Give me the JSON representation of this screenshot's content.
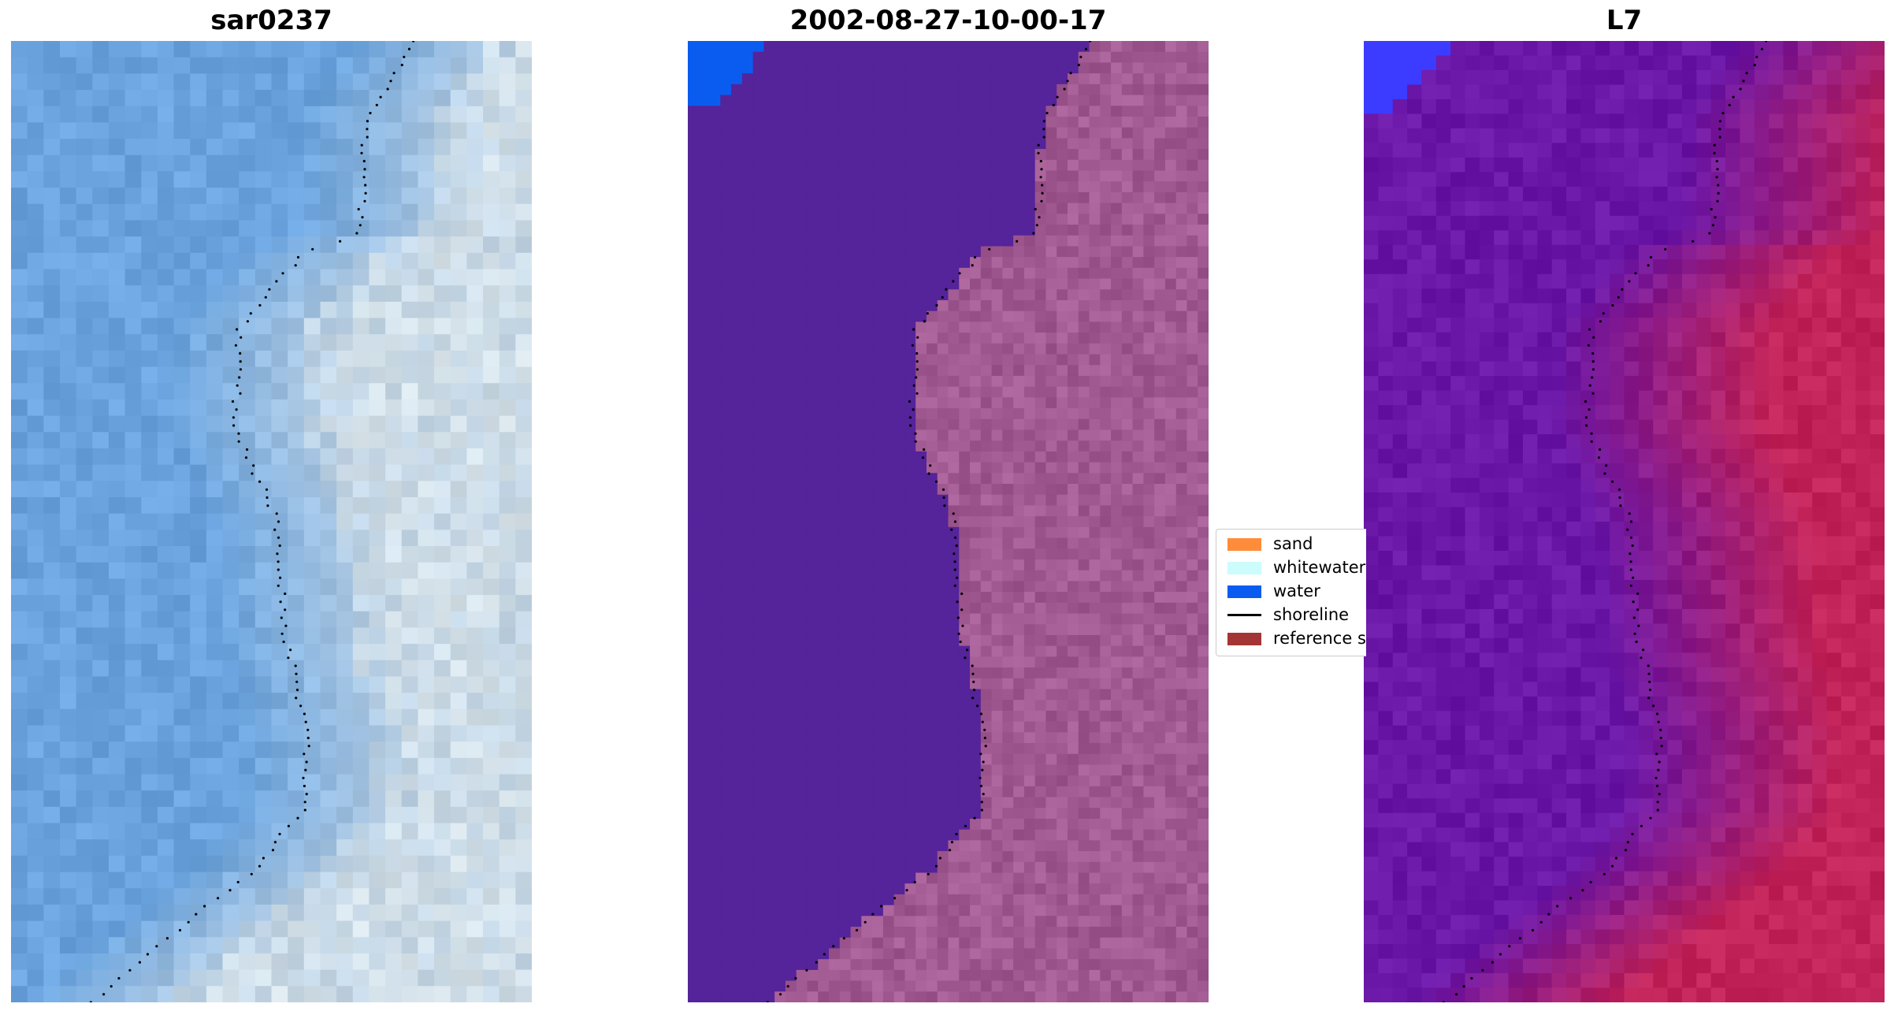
{
  "panels": [
    {
      "title": "sar0237",
      "kind": "rgb"
    },
    {
      "title": "2002-08-27-10-00-17",
      "kind": "classified"
    },
    {
      "title": "L7",
      "kind": "index"
    }
  ],
  "legend": {
    "items": [
      {
        "label": "sand",
        "color": "#ff8c3a",
        "type": "patch"
      },
      {
        "label": "whitewater",
        "color": "#ccfcfc",
        "type": "patch"
      },
      {
        "label": "water",
        "color": "#0a5cf0",
        "type": "patch"
      },
      {
        "label": "shoreline",
        "color": "#000000",
        "type": "line"
      },
      {
        "label": "reference sl",
        "color": "#a33535",
        "type": "patch"
      }
    ]
  },
  "colors": {
    "rgb_water": "#6aa3dd",
    "rgb_land": "#c3d6e6",
    "class_water": "#55239a",
    "class_land": "#a25a92",
    "class_blue": "#0a5cf0",
    "index_water": "#6a16a6",
    "index_land": "#c2245a",
    "index_blue": "#3b3cff"
  }
}
